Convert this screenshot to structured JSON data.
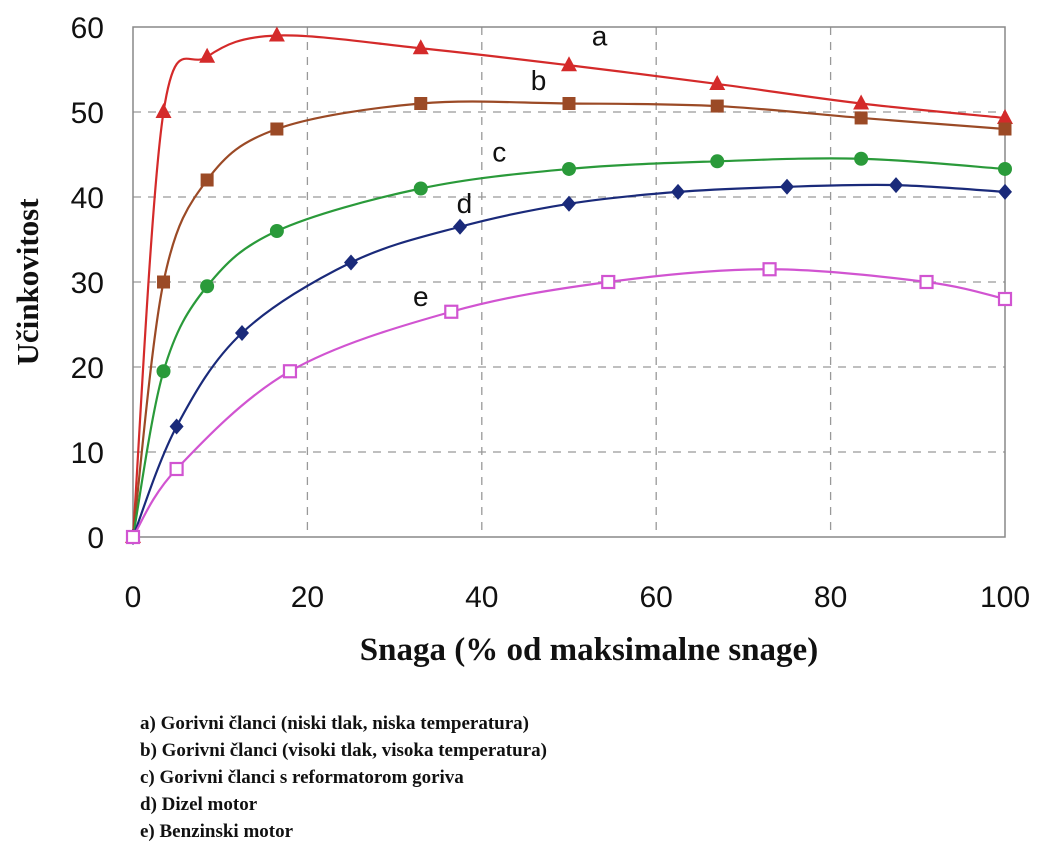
{
  "chart_data": {
    "type": "line",
    "title": "",
    "xlabel": "Snaga (% od maksimalne snage)",
    "ylabel": "Učinkovitost",
    "xlim": [
      0,
      100
    ],
    "ylim": [
      0,
      60
    ],
    "xticks": [
      "0",
      "20",
      "40",
      "60",
      "80",
      "100"
    ],
    "yticks": [
      "0",
      "10",
      "20",
      "30",
      "40",
      "50",
      "60"
    ],
    "grid": true,
    "legend_position": "bottom",
    "series": [
      {
        "name": "a",
        "legend": "a) Gorivni članci (niski tlak, niska temperatura)",
        "color": "#d42a2a",
        "marker": "triangle",
        "x": [
          0,
          3.5,
          8.5,
          16.5,
          33,
          50,
          67,
          83.5,
          100
        ],
        "y": [
          0,
          50,
          56.5,
          59,
          57.5,
          55.5,
          53.3,
          51,
          49.3
        ]
      },
      {
        "name": "b",
        "legend": "b) Gorivni članci (visoki tlak,  visoka temperatura)",
        "color": "#9b4a26",
        "marker": "square",
        "x": [
          0,
          3.5,
          8.5,
          16.5,
          33,
          50,
          67,
          83.5,
          100
        ],
        "y": [
          0,
          30,
          42,
          48,
          51,
          51,
          50.7,
          49.3,
          48
        ]
      },
      {
        "name": "c",
        "legend": "c) Gorivni članci s reformatorom goriva",
        "color": "#2a9a3a",
        "marker": "circle",
        "x": [
          0,
          3.5,
          8.5,
          16.5,
          33,
          50,
          67,
          83.5,
          100
        ],
        "y": [
          0,
          19.5,
          29.5,
          36,
          41,
          43.3,
          44.2,
          44.5,
          43.3
        ]
      },
      {
        "name": "d",
        "legend": "d) Dizel motor",
        "color": "#1a2a7a",
        "marker": "diamond",
        "x": [
          0,
          5,
          12.5,
          25,
          37.5,
          50,
          62.5,
          75,
          87.5,
          100
        ],
        "y": [
          0,
          13,
          24,
          32.3,
          36.5,
          39.2,
          40.6,
          41.2,
          41.4,
          40.6
        ]
      },
      {
        "name": "e",
        "legend": "e) Benzinski motor",
        "color": "#d154d1",
        "marker": "open-square",
        "x": [
          0,
          5,
          18,
          36.5,
          54.5,
          73,
          91,
          100
        ],
        "y": [
          0,
          8,
          19.5,
          26.5,
          30,
          31.5,
          30,
          28
        ]
      }
    ]
  }
}
